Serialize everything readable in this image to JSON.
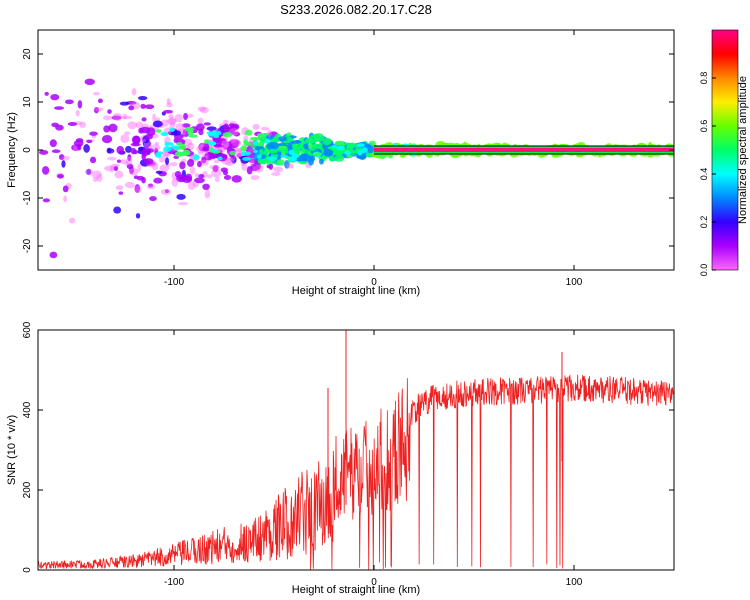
{
  "title": "S233.2026.082.20.17.C28",
  "colors": {
    "spec_purple": "#7a1fe6",
    "spec_light": "#c99cf3",
    "line_red": "#ee2020",
    "axis": "#000000"
  },
  "chart_data": [
    {
      "id": "spectrogram",
      "type": "heatmap",
      "xlabel": "Height of straight line (km)",
      "ylabel": "Frequency (Hz)",
      "xlim": [
        -168,
        150
      ],
      "ylim": [
        -25,
        25
      ],
      "xticks": [
        -100,
        0,
        100
      ],
      "yticks": [
        -20,
        -10,
        0,
        10,
        20
      ],
      "colorbar": {
        "label": "Normalized spectral amplitude",
        "range": [
          0,
          1
        ],
        "ticks": [
          "0.0",
          "0.2",
          "0.4",
          "0.6",
          "0.8"
        ],
        "stops": [
          "#ff66ff",
          "#aa00ff",
          "#3300ff",
          "#0088ff",
          "#00ffff",
          "#00ff66",
          "#66ff00",
          "#ffee00",
          "#ff8800",
          "#ff0000",
          "#ff0088"
        ]
      },
      "carrier": {
        "start_km": 0,
        "end_km": 150,
        "frequency_hz": 0
      }
    },
    {
      "id": "snr",
      "type": "line",
      "xlabel": "Height of straight line (km)",
      "ylabel": "SNR (10 * v/v)",
      "xlim": [
        -168,
        150
      ],
      "ylim": [
        0,
        600
      ],
      "xticks": [
        -100,
        0,
        100
      ],
      "yticks": [
        0,
        200,
        400,
        600
      ],
      "envelope": {
        "x": [
          -168,
          -140,
          -120,
          -100,
          -80,
          -60,
          -40,
          -30,
          -20,
          -10,
          0,
          10,
          20,
          30,
          50,
          80,
          100,
          120,
          150
        ],
        "y": [
          18,
          22,
          32,
          55,
          85,
          110,
          190,
          230,
          260,
          280,
          300,
          335,
          400,
          430,
          445,
          450,
          455,
          450,
          440
        ]
      },
      "spikes": [
        {
          "x": -23,
          "y": 455
        },
        {
          "x": -14,
          "y": 600
        },
        {
          "x": 94,
          "y": 545
        }
      ]
    }
  ]
}
